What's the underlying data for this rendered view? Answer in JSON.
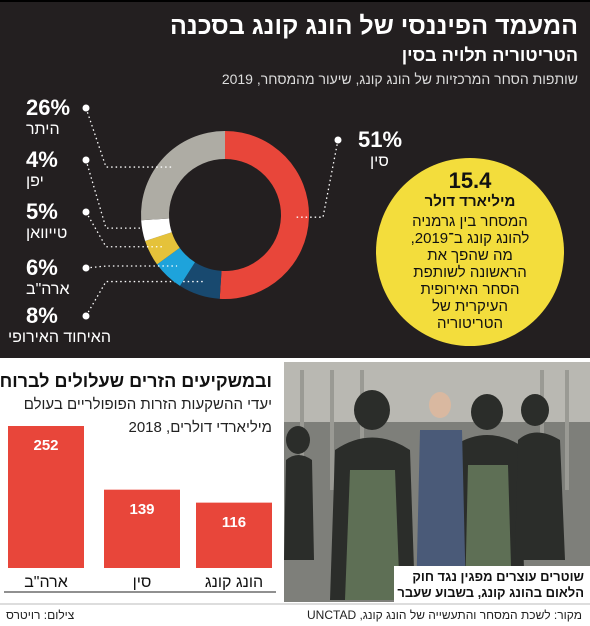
{
  "header": {
    "title": "המעמד הפיננסי של הונג קונג בסכנה"
  },
  "chart_data": [
    {
      "type": "donut",
      "title": "הטריטוריה תלויה בסין",
      "subtitle": "שותפות הסחר המרכזיות של הונג קונג, שיעור מהמסחר, 2019",
      "categories": [
        "סין",
        "האיחוד האירופי",
        "ארה\"ב",
        "טייוואן",
        "יפן",
        "היתר"
      ],
      "values": [
        51,
        8,
        6,
        5,
        4,
        26
      ],
      "value_labels": [
        "51%",
        "8%",
        "6%",
        "5%",
        "4%",
        "26%"
      ],
      "colors": [
        "#e8463a",
        "#18496f",
        "#1ea3db",
        "#e5c23a",
        "#ffffff",
        "#aeaca4"
      ]
    },
    {
      "type": "bar",
      "title": "ובמשקיעים הזרים שעלולים לברוח",
      "subtitle": "יעדי ההשקעות הזרות הפופולריים בעולם",
      "note": "מיליארדי דולרים, 2018",
      "categories": [
        "ארה\"ב",
        "סין",
        "הונג קונג"
      ],
      "values": [
        252,
        139,
        116
      ],
      "color": "#e8463a"
    }
  ],
  "annotation": {
    "value": "15.4",
    "unit": "מיליארד דולר",
    "lines": [
      "המסחר בין גרמניה",
      "להונג קונג ב־2019,",
      "מה שהפך את",
      "הראשונה לשותפת",
      "הסחר האירופית",
      "העיקרית של",
      "הטריטוריה"
    ]
  },
  "photo": {
    "caption_lines": [
      "שוטרים עוצרים מפגין נגד חוק",
      "הלאום בהונג קונג, בשבוע שעבר"
    ]
  },
  "footer": {
    "source": "מקור: לשכת המסחר והתעשייה של הונג קונג, UNCTAD",
    "credit": "צילום: רויטרס"
  }
}
